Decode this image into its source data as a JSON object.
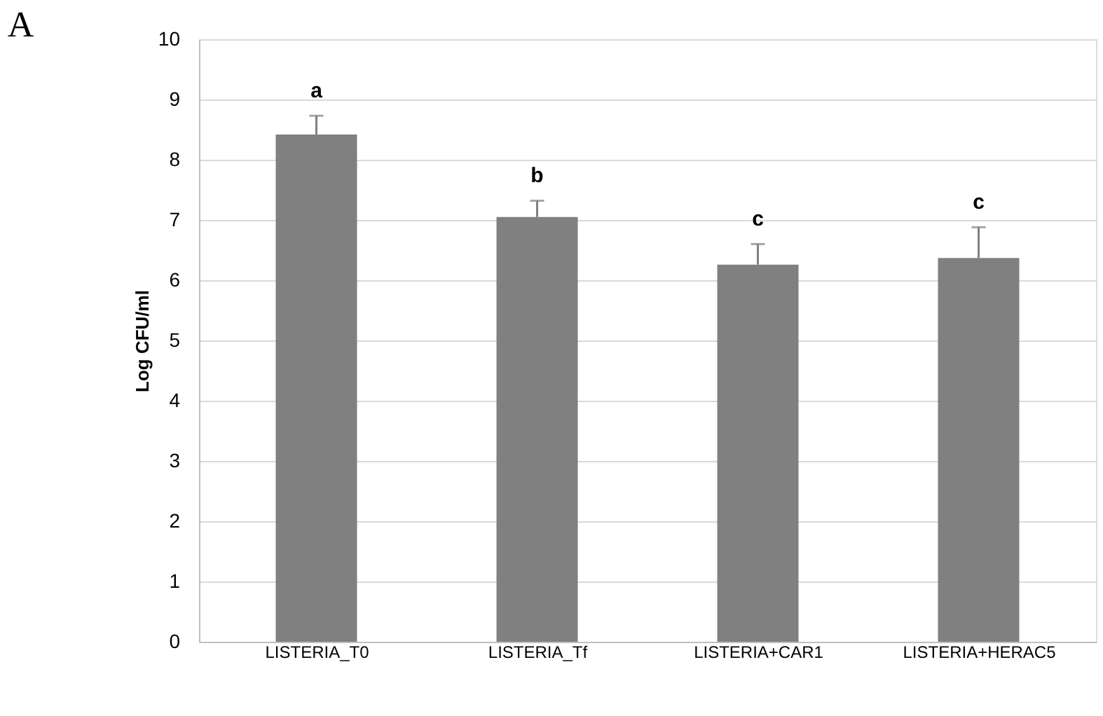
{
  "chart_data": {
    "type": "bar",
    "title": "A",
    "ylabel": "Log CFU/ml",
    "categories": [
      "LISTERIA_T0",
      "LISTERIA_Tf",
      "LISTERIA+CAR1",
      "LISTERIA+HERAC5"
    ],
    "values": [
      8.42,
      7.05,
      6.26,
      6.37
    ],
    "errors": [
      0.31,
      0.27,
      0.34,
      0.51
    ],
    "color": "#808080",
    "ylim": [
      0,
      10
    ],
    "yticks": [
      0,
      1,
      2,
      3,
      4,
      5,
      6,
      7,
      8,
      9,
      10
    ],
    "grid": "y",
    "annotations": [
      "a",
      "b",
      "c",
      "c"
    ]
  }
}
